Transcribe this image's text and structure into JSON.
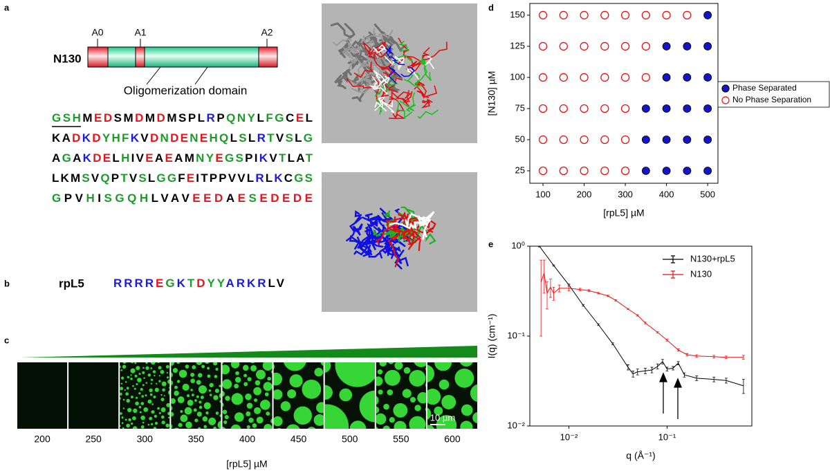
{
  "panel_labels": [
    "a",
    "b",
    "c",
    "d",
    "e"
  ],
  "domain_map": {
    "protein": "N130",
    "regions": [
      "A0",
      "A1",
      "A2"
    ],
    "domain_label": "Oligomerization domain"
  },
  "palette": {
    "k": "#000000",
    "r": "#e8141c",
    "g": "#1e9a2a",
    "b": "#1a1ad8"
  },
  "sequence": [
    [
      [
        "GSH",
        "g"
      ],
      [
        "M",
        "k"
      ],
      [
        "ED",
        "r"
      ],
      [
        "SM",
        "k"
      ],
      [
        "D",
        "r"
      ],
      [
        "M",
        "k"
      ],
      [
        "D",
        "r"
      ],
      [
        "MSPL",
        "k"
      ],
      [
        "R",
        "b"
      ],
      [
        "P",
        "k"
      ],
      [
        "QNY",
        "g"
      ],
      [
        "L",
        "k"
      ],
      [
        "FG",
        "g"
      ],
      [
        "C",
        "k"
      ],
      [
        "E",
        "r"
      ],
      [
        "L",
        "k"
      ]
    ],
    [
      [
        "KA",
        "k"
      ],
      [
        "D",
        "r"
      ],
      [
        "K",
        "b"
      ],
      [
        "D",
        "r"
      ],
      [
        "YHF",
        "g"
      ],
      [
        "K",
        "b"
      ],
      [
        "V",
        "k"
      ],
      [
        "D",
        "r"
      ],
      [
        "N",
        "g"
      ],
      [
        "DE",
        "r"
      ],
      [
        "N",
        "g"
      ],
      [
        "E",
        "r"
      ],
      [
        "HQ",
        "g"
      ],
      [
        "L",
        "k"
      ],
      [
        "S",
        "g"
      ],
      [
        "L",
        "k"
      ],
      [
        "R",
        "b"
      ],
      [
        "T",
        "g"
      ],
      [
        "V",
        "k"
      ],
      [
        "S",
        "g"
      ],
      [
        "L",
        "k"
      ],
      [
        "G",
        "g"
      ]
    ],
    [
      [
        "A",
        "k"
      ],
      [
        "G",
        "g"
      ],
      [
        "A",
        "k"
      ],
      [
        "K",
        "b"
      ],
      [
        "DE",
        "r"
      ],
      [
        "L",
        "k"
      ],
      [
        "H",
        "g"
      ],
      [
        "IV",
        "k"
      ],
      [
        "E",
        "r"
      ],
      [
        "A",
        "k"
      ],
      [
        "E",
        "r"
      ],
      [
        "AM",
        "k"
      ],
      [
        "NY",
        "g"
      ],
      [
        "E",
        "r"
      ],
      [
        "GS",
        "g"
      ],
      [
        "PI",
        "k"
      ],
      [
        "K",
        "b"
      ],
      [
        "V",
        "k"
      ],
      [
        "T",
        "g"
      ],
      [
        "LA",
        "k"
      ],
      [
        "T",
        "g"
      ]
    ],
    [
      [
        "LKM",
        "k"
      ],
      [
        "S",
        "g"
      ],
      [
        "V",
        "k"
      ],
      [
        "Q",
        "g"
      ],
      [
        "P",
        "k"
      ],
      [
        "T",
        "g"
      ],
      [
        "V",
        "k"
      ],
      [
        "S",
        "g"
      ],
      [
        "L",
        "k"
      ],
      [
        "GG",
        "g"
      ],
      [
        "F",
        "k"
      ],
      [
        "E",
        "r"
      ],
      [
        "ITPPVVL",
        "k"
      ],
      [
        "R",
        "b"
      ],
      [
        "L",
        "k"
      ],
      [
        "K",
        "b"
      ],
      [
        "C",
        "k"
      ],
      [
        "GS",
        "g"
      ]
    ],
    [
      [
        "G",
        "g"
      ],
      [
        "PV",
        "k"
      ],
      [
        "H",
        "g"
      ],
      [
        "I",
        "k"
      ],
      [
        "SGQH",
        "g"
      ],
      [
        "LVAV",
        "k"
      ],
      [
        "EED",
        "r"
      ],
      [
        "A",
        "k"
      ],
      [
        "E",
        "r"
      ],
      [
        "S",
        "g"
      ],
      [
        "EDEDE",
        "r"
      ]
    ]
  ],
  "peptide": {
    "name": "rpL5",
    "segments": [
      [
        "RRRR",
        "b"
      ],
      [
        "E",
        "r"
      ],
      [
        "G",
        "g"
      ],
      [
        "K",
        "b"
      ],
      [
        "T",
        "g"
      ],
      [
        "D",
        "r"
      ],
      [
        "YY",
        "g"
      ],
      [
        "ARKR",
        "b"
      ],
      [
        "LV",
        "k"
      ]
    ]
  },
  "microscopy": {
    "concentrations": [
      200,
      250,
      300,
      350,
      400,
      450,
      500,
      550,
      600
    ],
    "xlabel": "[rpL5] µM",
    "scale_bar": "10 µm"
  },
  "chart_data": [
    {
      "type": "scatter",
      "xlabel": "[rpL5] µM",
      "ylabel": "[N130] µM",
      "xlim": [
        68,
        525
      ],
      "ylim": [
        15,
        159.4
      ],
      "xticks": [
        100,
        200,
        300,
        400,
        500
      ],
      "yticks": [
        25,
        50,
        75,
        100,
        125,
        150
      ],
      "legend": "outside-right",
      "series": [
        {
          "name": "Phase Separated",
          "color": "#1414c8",
          "marker": "filled",
          "x": [
            500,
            400,
            450,
            500,
            400,
            450,
            500,
            350,
            400,
            450,
            500,
            350,
            400,
            450,
            500,
            350,
            400,
            450,
            500
          ],
          "y": [
            150,
            125,
            125,
            125,
            100,
            100,
            100,
            75,
            75,
            75,
            75,
            50,
            50,
            50,
            50,
            25,
            25,
            25,
            25
          ]
        },
        {
          "name": "No Phase Separation",
          "color": "#e81010",
          "marker": "open",
          "x": [
            100,
            150,
            200,
            250,
            300,
            350,
            400,
            450,
            100,
            150,
            200,
            250,
            300,
            350,
            100,
            150,
            200,
            250,
            300,
            350,
            100,
            150,
            200,
            250,
            300,
            100,
            150,
            200,
            250,
            300,
            100,
            150,
            200,
            250,
            300
          ],
          "y": [
            150,
            150,
            150,
            150,
            150,
            150,
            150,
            150,
            125,
            125,
            125,
            125,
            125,
            125,
            100,
            100,
            100,
            100,
            100,
            100,
            75,
            75,
            75,
            75,
            75,
            50,
            50,
            50,
            50,
            50,
            25,
            25,
            25,
            25,
            25
          ]
        }
      ]
    },
    {
      "type": "line",
      "xlabel": "q (Å⁻¹)",
      "ylabel": "I(q) (cm⁻¹)",
      "xscale": "log",
      "yscale": "log",
      "xlim": [
        0.004,
        0.73
      ],
      "ylim": [
        0.01,
        1
      ],
      "xticks": [
        {
          "value": 0.01,
          "label": "10⁻²"
        },
        {
          "value": 0.1,
          "label": "10⁻¹"
        }
      ],
      "yticks": [
        {
          "value": 0.01,
          "label": "10⁻²"
        },
        {
          "value": 0.1,
          "label": "10⁻¹"
        },
        {
          "value": 1,
          "label": "10⁰"
        }
      ],
      "legend": "upper right",
      "series": [
        {
          "name": "N130+rpL5",
          "color": "#000000",
          "x": [
            0.005,
            0.007,
            0.01,
            0.014,
            0.02,
            0.028,
            0.04,
            0.045,
            0.05,
            0.06,
            0.07,
            0.08,
            0.09,
            0.1,
            0.115,
            0.13,
            0.15,
            0.2,
            0.3,
            0.4,
            0.6
          ],
          "values": [
            1.0,
            0.61,
            0.37,
            0.22,
            0.134,
            0.082,
            0.045,
            0.038,
            0.04,
            0.041,
            0.042,
            0.046,
            0.052,
            0.043,
            0.044,
            0.05,
            0.037,
            0.034,
            0.033,
            0.032,
            0.028
          ],
          "errors": [
            0.02,
            0.01,
            0.008,
            0.005,
            0.003,
            0.002,
            0.003,
            0.003,
            0.003,
            0.003,
            0.003,
            0.003,
            0.003,
            0.002,
            0.002,
            0.002,
            0.002,
            0.002,
            0.002,
            0.002,
            0.005
          ]
        },
        {
          "name": "N130",
          "color": "#e81010",
          "x": [
            0.0052,
            0.0056,
            0.006,
            0.0065,
            0.007,
            0.008,
            0.01,
            0.013,
            0.016,
            0.02,
            0.025,
            0.03,
            0.04,
            0.05,
            0.06,
            0.08,
            0.1,
            0.13,
            0.16,
            0.2,
            0.3,
            0.4,
            0.6
          ],
          "values": [
            0.4,
            0.5,
            0.3,
            0.35,
            0.3,
            0.34,
            0.34,
            0.33,
            0.32,
            0.3,
            0.28,
            0.25,
            0.2,
            0.17,
            0.14,
            0.11,
            0.09,
            0.07,
            0.062,
            0.06,
            0.059,
            0.058,
            0.058
          ],
          "errors": [
            0.3,
            0.2,
            0.1,
            0.08,
            0.05,
            0.03,
            0.02,
            0.01,
            0.008,
            0.006,
            0.005,
            0.004,
            0.003,
            0.003,
            0.003,
            0.002,
            0.002,
            0.002,
            0.002,
            0.002,
            0.002,
            0.002,
            0.003
          ]
        }
      ]
    }
  ]
}
